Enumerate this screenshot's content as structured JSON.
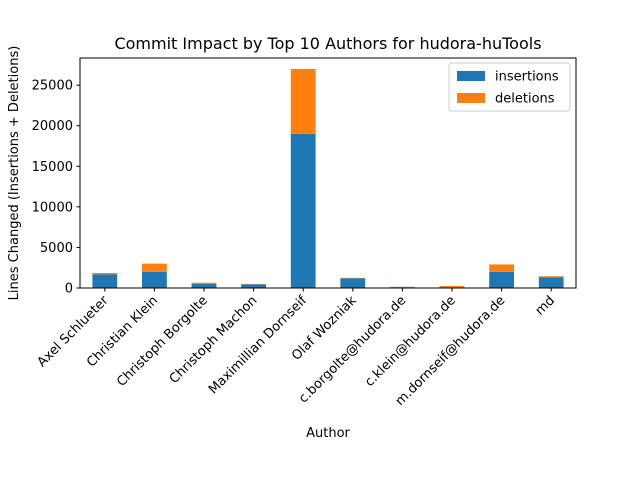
{
  "chart_data": {
    "type": "bar",
    "stacked": true,
    "title": "Commit Impact by Top 10 Authors for hudora-huTools",
    "xlabel": "Author",
    "ylabel": "Lines Changed (Insertions + Deletions)",
    "categories": [
      "Axel Schlueter",
      "Christian Klein",
      "Christoph Borgolte",
      "Christoph Machon",
      "Maximillian Dornseif",
      "Olaf Wozniak",
      "c.borgolte@hudora.de",
      "c.klein@hudora.de",
      "m.dornseif@hudora.de",
      "md"
    ],
    "series": [
      {
        "name": "insertions",
        "color": "#1f77b4",
        "values": [
          1700,
          2000,
          500,
          450,
          19000,
          1200,
          100,
          100,
          2000,
          1300
        ]
      },
      {
        "name": "deletions",
        "color": "#ff7f0e",
        "values": [
          150,
          1000,
          150,
          50,
          8000,
          50,
          50,
          150,
          900,
          150
        ]
      }
    ],
    "ylim": [
      0,
      28350
    ],
    "yticks": [
      0,
      5000,
      10000,
      15000,
      20000,
      25000
    ],
    "grid": false,
    "legend_position": "top-right"
  }
}
